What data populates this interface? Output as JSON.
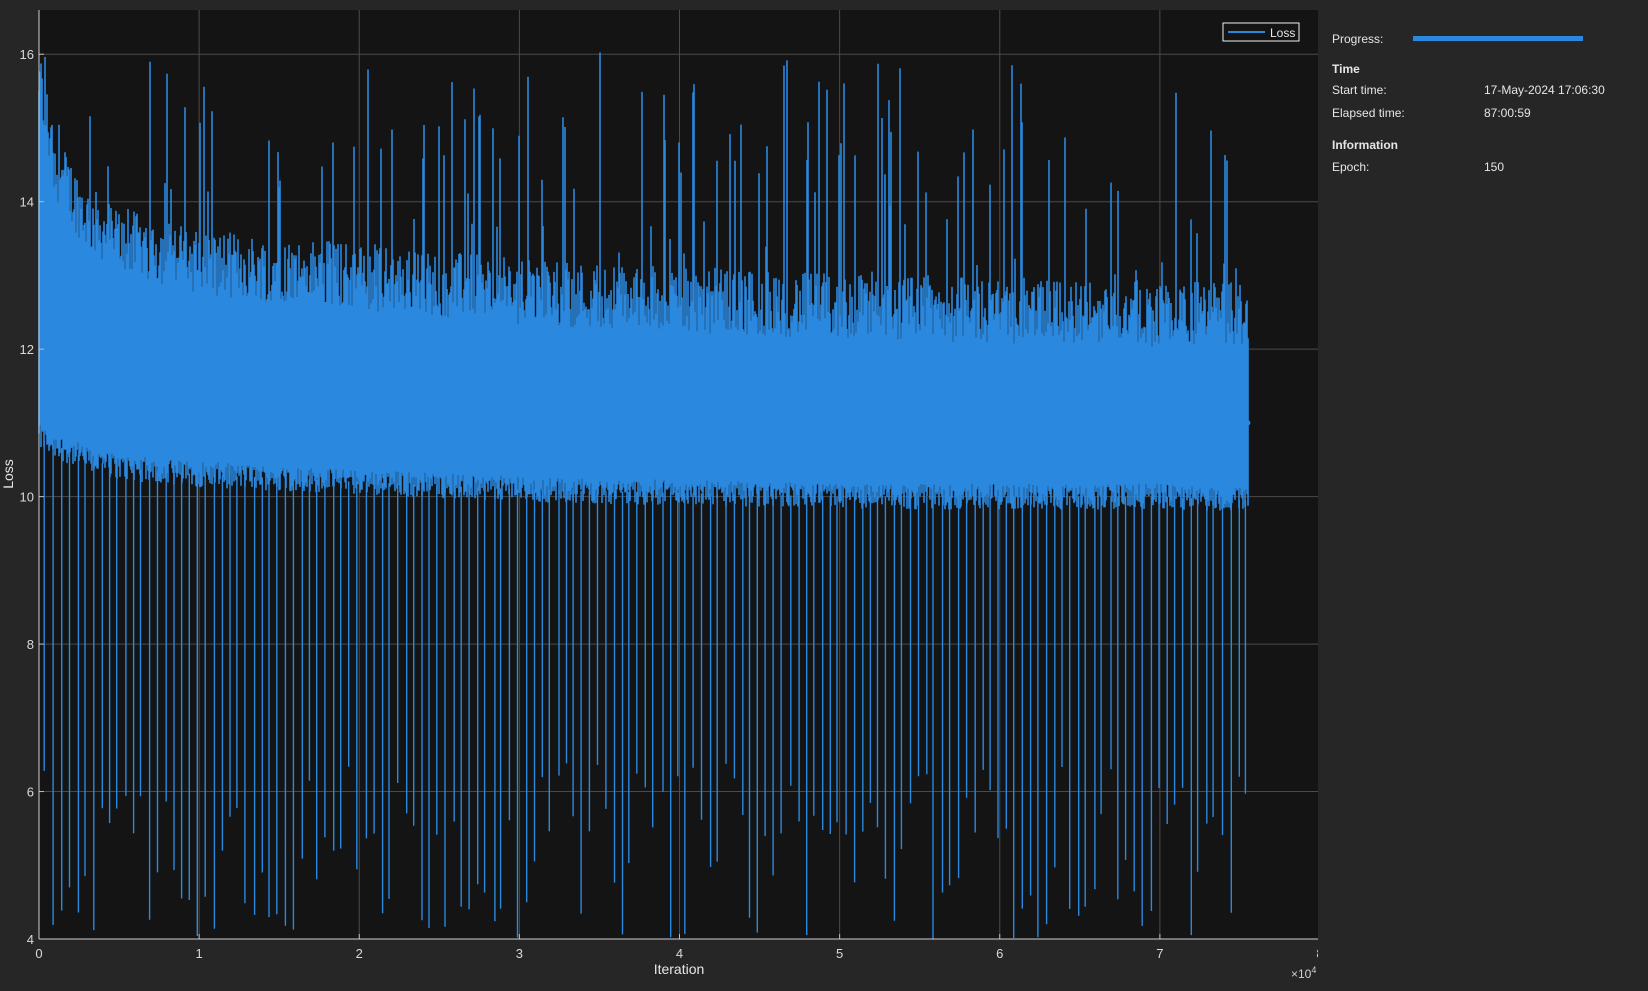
{
  "chart_data": {
    "type": "line",
    "xlabel": "Iteration",
    "ylabel": "Loss",
    "xlim": [
      0,
      80000
    ],
    "ylim": [
      4,
      16.6
    ],
    "xticks": [
      0,
      1,
      2,
      3,
      4,
      5,
      6,
      7,
      8
    ],
    "xtick_labels": [
      "0",
      "1",
      "2",
      "3",
      "4",
      "5",
      "6",
      "7",
      "8"
    ],
    "x_exponent_label": "×10",
    "x_exponent_power": "4",
    "yticks": [
      4,
      6,
      8,
      10,
      12,
      14,
      16
    ],
    "ytick_labels": [
      "4",
      "6",
      "8",
      "10",
      "12",
      "14",
      "16"
    ],
    "grid": true,
    "legend": {
      "placement": "top-right",
      "entries": [
        "Loss"
      ]
    },
    "series": [
      {
        "name": "Loss",
        "color": "#2a88df",
        "x_range": [
          0,
          75500
        ],
        "band_x": [
          0,
          1000,
          3000,
          5000,
          10000,
          20000,
          30000,
          40000,
          50000,
          60000,
          70000,
          75500
        ],
        "band_lower": [
          10.8,
          10.7,
          10.5,
          10.4,
          10.3,
          10.2,
          10.1,
          10.05,
          10.0,
          10.0,
          10.0,
          9.95
        ],
        "band_upper": [
          15.5,
          14.3,
          13.6,
          13.3,
          13.0,
          12.8,
          12.6,
          12.5,
          12.4,
          12.35,
          12.3,
          12.3
        ],
        "low_spike_period": 500,
        "low_spike_min": 4.0,
        "low_spike_max": 6.4,
        "high_spike_max": 16.6,
        "last_value": 11.0
      }
    ]
  },
  "panel": {
    "progress_label": "Progress:",
    "progress_value": 1.0,
    "time_title": "Time",
    "start_label": "Start time:",
    "start_value": "17-May-2024 17:06:30",
    "elapsed_label": "Elapsed time:",
    "elapsed_value": "87:00:59",
    "info_title": "Information",
    "epoch_label": "Epoch:",
    "epoch_value": "150"
  }
}
